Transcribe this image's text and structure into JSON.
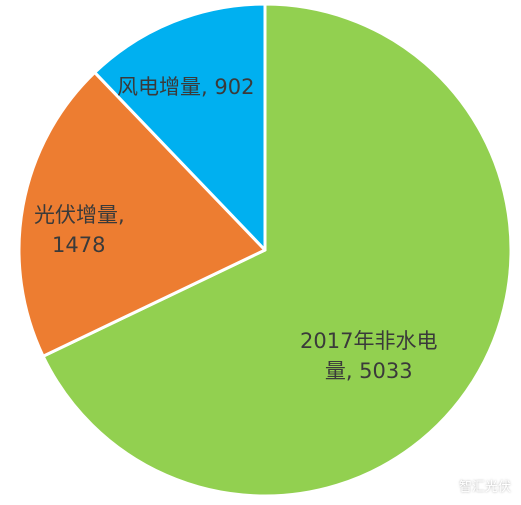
{
  "chart_data": {
    "type": "pie",
    "slices": [
      {
        "label": "2017年非水电量",
        "value": 5033,
        "color": "#92d050"
      },
      {
        "label": "光伏增量",
        "value": 1478,
        "color": "#ed7d31"
      },
      {
        "label": "风电增量",
        "value": 902,
        "color": "#00b0f0"
      }
    ],
    "labels": {
      "nonhydro_line1": "2017年非水电",
      "nonhydro_line2": "量, 5033",
      "solar_line1": "光伏增量,",
      "solar_line2": "1478",
      "wind": "风电增量, 902"
    }
  },
  "watermark": {
    "text": "智汇光伏",
    "icon": "wechat-icon"
  }
}
